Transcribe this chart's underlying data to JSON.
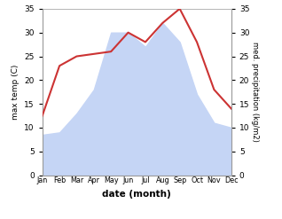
{
  "months": [
    "Jan",
    "Feb",
    "Mar",
    "Apr",
    "May",
    "Jun",
    "Jul",
    "Aug",
    "Sep",
    "Oct",
    "Nov",
    "Dec"
  ],
  "temperature": [
    12.5,
    23.0,
    25.0,
    25.5,
    26.0,
    30.0,
    28.0,
    32.0,
    35.0,
    28.0,
    18.0,
    14.0
  ],
  "precipitation": [
    8.5,
    9.0,
    13.0,
    18.0,
    30.0,
    30.0,
    27.0,
    32.0,
    28.0,
    17.0,
    11.0,
    10.0
  ],
  "temp_color": "#cc3333",
  "precip_fill_color": "#c5d5f5",
  "ylim": [
    0,
    35
  ],
  "yticks": [
    0,
    5,
    10,
    15,
    20,
    25,
    30,
    35
  ],
  "xlabel": "date (month)",
  "ylabel_left": "max temp (C)",
  "ylabel_right": "med. precipitation (kg/m2)"
}
